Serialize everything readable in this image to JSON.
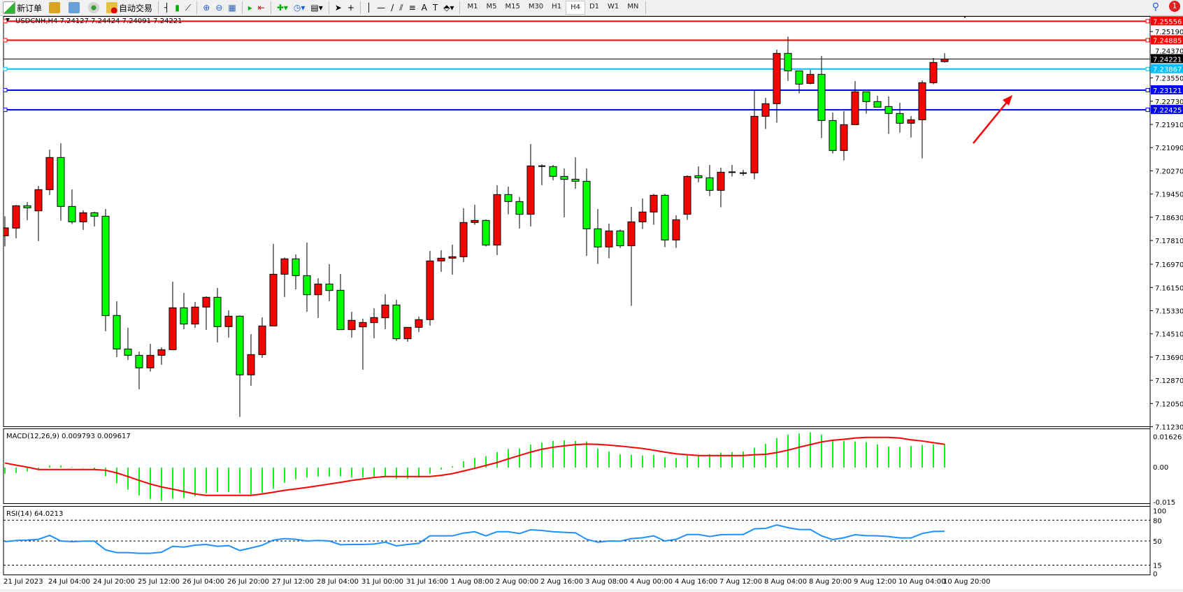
{
  "toolbar": {
    "new_order": "新订单",
    "auto_trading": "自动交易",
    "timeframes": [
      "M1",
      "M5",
      "M15",
      "M30",
      "H1",
      "H4",
      "D1",
      "W1",
      "MN"
    ],
    "selected_timeframe": "H4",
    "notification_count": "1"
  },
  "chart": {
    "header": "USDCNH,H4  7.24127 7.24424 7.24091 7.24221",
    "bull_color": "#ff0000",
    "bear_color": "#00ff00",
    "price_ticks": [
      "7.25190",
      "7.24370",
      "7.23550",
      "7.22730",
      "7.21910",
      "7.21090",
      "7.20270",
      "7.19450",
      "7.18630",
      "7.17810",
      "7.16970",
      "7.16150",
      "7.15330",
      "7.14510",
      "7.13690",
      "7.12870",
      "7.12050",
      "7.11230"
    ],
    "hlines": [
      {
        "price": 7.25556,
        "label": "7.25556",
        "color": "#ff0000"
      },
      {
        "price": 7.24885,
        "label": "7.24885",
        "color": "#ff0000"
      },
      {
        "price": 7.24221,
        "label": "7.24221",
        "color": "#000000"
      },
      {
        "price": 7.23867,
        "label": "7.23867",
        "color": "#00bfff"
      },
      {
        "price": 7.23121,
        "label": "7.23121",
        "color": "#0000ff"
      },
      {
        "price": 7.22425,
        "label": "7.22425",
        "color": "#0000ff"
      }
    ],
    "time_labels": [
      "21 Jul 2023",
      "24 Jul 04:00",
      "24 Jul 20:00",
      "25 Jul 12:00",
      "26 Jul 04:00",
      "26 Jul 20:00",
      "27 Jul 12:00",
      "28 Jul 04:00",
      "31 Jul 00:00",
      "31 Jul 16:00",
      "1 Aug 08:00",
      "2 Aug 00:00",
      "2 Aug 16:00",
      "3 Aug 08:00",
      "4 Aug 00:00",
      "4 Aug 16:00",
      "7 Aug 12:00",
      "8 Aug 04:00",
      "8 Aug 20:00",
      "9 Aug 12:00",
      "10 Aug 04:00",
      "10 Aug 20:00"
    ],
    "annotation": {
      "type": "arrow",
      "color": "#ff0000"
    }
  },
  "chart_data": {
    "type": "candlestick",
    "symbol": "USDCNH",
    "timeframe": "H4",
    "ylim": [
      7.1123,
      7.2625
    ],
    "ohlc": [
      [
        7.17975,
        7.18667,
        7.17597,
        7.18255
      ],
      [
        7.18247,
        7.19062,
        7.17885,
        7.19037
      ],
      [
        7.19037,
        7.19169,
        7.18527,
        7.18963
      ],
      [
        7.18856,
        7.19737,
        7.17786,
        7.19605
      ],
      [
        7.19605,
        7.21021,
        7.19416,
        7.20741
      ],
      [
        7.20741,
        7.21243,
        7.1851,
        7.19012
      ],
      [
        7.19012,
        7.19613,
        7.18387,
        7.18469
      ],
      [
        7.18469,
        7.18873,
        7.18181,
        7.1879
      ],
      [
        7.1879,
        7.18823,
        7.18305,
        7.18667
      ],
      [
        7.18667,
        7.18922,
        7.14601,
        7.15153
      ],
      [
        7.15161,
        7.15663,
        7.13688,
        7.13976
      ],
      [
        7.13976,
        7.14725,
        7.13589,
        7.13753
      ],
      [
        7.13753,
        7.13885,
        7.12552,
        7.13309
      ],
      [
        7.13309,
        7.14157,
        7.13177,
        7.13753
      ],
      [
        7.13753,
        7.14033,
        7.13416,
        7.13951
      ],
      [
        7.13951,
        7.16354,
        7.13951,
        7.15432
      ],
      [
        7.15432,
        7.15959,
        7.14675,
        7.14856
      ],
      [
        7.14856,
        7.15638,
        7.14725,
        7.15457
      ],
      [
        7.15457,
        7.15836,
        7.14651,
        7.15803
      ],
      [
        7.15803,
        7.16132,
        7.14206,
        7.14766
      ],
      [
        7.14766,
        7.15342,
        7.14379,
        7.15136
      ],
      [
        7.15136,
        7.15161,
        7.11572,
        7.13062
      ],
      [
        7.13062,
        7.14502,
        7.12675,
        7.13778
      ],
      [
        7.13778,
        7.15095,
        7.13663,
        7.1479
      ],
      [
        7.1479,
        7.17687,
        7.1479,
        7.16617
      ],
      [
        7.16617,
        7.1721,
        7.15811,
        7.17161
      ],
      [
        7.17161,
        7.17317,
        7.16083,
        7.16568
      ],
      [
        7.16568,
        7.17737,
        7.15292,
        7.15893
      ],
      [
        7.15893,
        7.16478,
        7.1507,
        7.16272
      ],
      [
        7.16272,
        7.16971,
        7.15663,
        7.16041
      ],
      [
        7.1605,
        7.16626,
        7.14659,
        7.14659
      ],
      [
        7.14659,
        7.15292,
        7.14379,
        7.14988
      ],
      [
        7.14758,
        7.15046,
        7.13243,
        7.14914
      ],
      [
        7.14906,
        7.15416,
        7.14354,
        7.15087
      ],
      [
        7.15078,
        7.1591,
        7.14675,
        7.15531
      ],
      [
        7.15531,
        7.15712,
        7.14264,
        7.14338
      ],
      [
        7.14338,
        7.14741,
        7.14231,
        7.14741
      ],
      [
        7.14741,
        7.1512,
        7.14576,
        7.15013
      ],
      [
        7.15013,
        7.1744,
        7.14799,
        7.17087
      ],
      [
        7.17087,
        7.17465,
        7.167,
        7.17185
      ],
      [
        7.17185,
        7.17663,
        7.16601,
        7.17235
      ],
      [
        7.17235,
        7.18947,
        7.17045,
        7.18445
      ],
      [
        7.18445,
        7.1907,
        7.18362,
        7.18519
      ],
      [
        7.18519,
        7.18552,
        7.17597,
        7.17646
      ],
      [
        7.17646,
        7.19761,
        7.17292,
        7.19432
      ],
      [
        7.19432,
        7.19712,
        7.18733,
        7.19185
      ],
      [
        7.19185,
        7.19342,
        7.18231,
        7.18733
      ],
      [
        7.18733,
        7.21218,
        7.18305,
        7.20444
      ],
      [
        7.20436,
        7.20502,
        7.19761,
        7.2042
      ],
      [
        7.2042,
        7.20477,
        7.19934,
        7.20074
      ],
      [
        7.20074,
        7.20354,
        7.18626,
        7.19967
      ],
      [
        7.19975,
        7.20749,
        7.19638,
        7.19901
      ],
      [
        7.19901,
        7.20354,
        7.17268,
        7.18222
      ],
      [
        7.18222,
        7.18922,
        7.1698,
        7.1758
      ],
      [
        7.1758,
        7.18403,
        7.17177,
        7.18148
      ],
      [
        7.18148,
        7.18198,
        7.17547,
        7.17622
      ],
      [
        7.17622,
        7.18996,
        7.15498,
        7.18469
      ],
      [
        7.18469,
        7.19292,
        7.18214,
        7.18815
      ],
      [
        7.18815,
        7.19457,
        7.18362,
        7.19407
      ],
      [
        7.19407,
        7.19457,
        7.17572,
        7.17827
      ],
      [
        7.17827,
        7.187,
        7.17547,
        7.18543
      ],
      [
        7.18733,
        7.20107,
        7.18535,
        7.20074
      ],
      [
        7.20099,
        7.20428,
        7.19868,
        7.20025
      ],
      [
        7.20025,
        7.20477,
        7.19375,
        7.1958
      ],
      [
        7.1958,
        7.20379,
        7.1898,
        7.20222
      ],
      [
        7.20222,
        7.20477,
        7.20066,
        7.20173
      ],
      [
        7.20189,
        7.20305,
        7.20091,
        7.20173
      ],
      [
        7.20198,
        7.23111,
        7.19967,
        7.22197
      ],
      [
        7.22197,
        7.22848,
        7.21745,
        7.22642
      ],
      [
        7.22642,
        7.24551,
        7.21967,
        7.2442
      ],
      [
        7.2442,
        7.25012,
        7.23448,
        7.23802
      ],
      [
        7.23802,
        7.23802,
        7.23004,
        7.23333
      ],
      [
        7.23358,
        7.23835,
        7.23325,
        7.23679
      ],
      [
        7.23679,
        7.24329,
        7.21424,
        7.22049
      ],
      [
        7.22049,
        7.22329,
        7.20881,
        7.20988
      ],
      [
        7.20988,
        7.22378,
        7.20634,
        7.21901
      ],
      [
        7.21901,
        7.2344,
        7.21901,
        7.23062
      ],
      [
        7.23062,
        7.23062,
        7.22288,
        7.22716
      ],
      [
        7.22716,
        7.22922,
        7.22518,
        7.22518
      ],
      [
        7.22543,
        7.22897,
        7.21572,
        7.22296
      ],
      [
        7.22296,
        7.22675,
        7.21621,
        7.21951
      ],
      [
        7.21951,
        7.22206,
        7.21448,
        7.22074
      ],
      [
        7.22074,
        7.23465,
        7.20708,
        7.23383
      ],
      [
        7.23383,
        7.24255,
        7.23325,
        7.24099
      ],
      [
        7.24127,
        7.24424,
        7.24091,
        7.24221
      ]
    ],
    "macd": {
      "label": "MACD(12,26,9) 0.009793 0.009617",
      "ticks": [
        "0.016261",
        "0.00",
        "-0.015"
      ],
      "ylim": [
        -0.0149,
        0.016261
      ],
      "histogram": [
        -0.0025,
        -0.0022,
        -0.0016,
        -0.0005,
        0.0009,
        0.0009,
        0.0002,
        -0.0001,
        -0.0006,
        -0.0035,
        -0.0065,
        -0.0091,
        -0.0115,
        -0.013,
        -0.0138,
        -0.0129,
        -0.0126,
        -0.0118,
        -0.0107,
        -0.0101,
        -0.0101,
        -0.0107,
        -0.0111,
        -0.0105,
        -0.0087,
        -0.0063,
        -0.0048,
        -0.0041,
        -0.0037,
        -0.0037,
        -0.0036,
        -0.0041,
        -0.0041,
        -0.0037,
        -0.0037,
        -0.0046,
        -0.0046,
        -0.0041,
        -0.0025,
        -0.0008,
        0.0005,
        0.0026,
        0.004,
        0.0047,
        0.0064,
        0.0077,
        0.0079,
        0.0095,
        0.0103,
        0.011,
        0.0113,
        0.011,
        0.0108,
        0.0079,
        0.0067,
        0.0055,
        0.0053,
        0.005,
        0.0053,
        0.0043,
        0.004,
        0.005,
        0.005,
        0.0055,
        0.0062,
        0.0064,
        0.0067,
        0.0082,
        0.0098,
        0.0122,
        0.0137,
        0.0141,
        0.0146,
        0.0137,
        0.0113,
        0.0111,
        0.0108,
        0.0105,
        0.0096,
        0.0087,
        0.0086,
        0.009,
        0.0094,
        0.0096,
        0.009793
      ],
      "signal": [
        0.0019,
        0.001,
        0.0002,
        -0.0008,
        -0.0008,
        -0.0008,
        -0.0008,
        -0.0008,
        -0.0008,
        -0.0011,
        -0.0022,
        -0.0037,
        -0.0053,
        -0.0068,
        -0.008,
        -0.0089,
        -0.0099,
        -0.0109,
        -0.0115,
        -0.0115,
        -0.0115,
        -0.0115,
        -0.0115,
        -0.0109,
        -0.0102,
        -0.0094,
        -0.0088,
        -0.0082,
        -0.0075,
        -0.0068,
        -0.0061,
        -0.0053,
        -0.0047,
        -0.0041,
        -0.0037,
        -0.0037,
        -0.0037,
        -0.0037,
        -0.0037,
        -0.0032,
        -0.0025,
        -0.0014,
        -0.0003,
        0.0009,
        0.0021,
        0.0036,
        0.005,
        0.0064,
        0.0076,
        0.0084,
        0.009,
        0.0095,
        0.0097,
        0.0096,
        0.0093,
        0.0089,
        0.0084,
        0.0079,
        0.0072,
        0.0064,
        0.0057,
        0.0053,
        0.005,
        0.005,
        0.005,
        0.005,
        0.005,
        0.0053,
        0.0055,
        0.0062,
        0.0072,
        0.0084,
        0.0095,
        0.0106,
        0.0113,
        0.0117,
        0.0122,
        0.0125,
        0.0125,
        0.0125,
        0.0122,
        0.0115,
        0.011,
        0.0103,
        0.009617
      ],
      "histogram_color": "#00ff00",
      "signal_color": "#ff0000"
    },
    "rsi": {
      "label": "RSI(14) 64.0213",
      "ticks": [
        "100",
        "80",
        "50",
        "15",
        "0"
      ],
      "levels": [
        80,
        50,
        15
      ],
      "ylim": [
        0,
        100
      ],
      "color": "#1e90ff",
      "values": [
        49.0,
        50.7,
        51.3,
        52.4,
        58.1,
        50.0,
        49.0,
        49.7,
        49.7,
        37.2,
        33.2,
        33.2,
        32.2,
        32.2,
        33.8,
        42.3,
        41.2,
        43.9,
        44.9,
        42.3,
        43.3,
        36.2,
        39.9,
        43.9,
        51.3,
        53.4,
        52.4,
        50.0,
        50.7,
        50.0,
        44.6,
        44.9,
        44.9,
        45.6,
        48.3,
        42.9,
        44.9,
        46.6,
        57.4,
        57.4,
        57.4,
        61.4,
        63.4,
        57.4,
        63.4,
        63.4,
        60.8,
        66.2,
        65.2,
        63.4,
        62.5,
        61.8,
        52.4,
        48.3,
        50.0,
        49.7,
        53.4,
        54.7,
        57.4,
        50.0,
        52.4,
        59.4,
        59.4,
        56.4,
        59.1,
        59.4,
        59.4,
        67.5,
        68.2,
        73.2,
        69.2,
        66.5,
        66.5,
        57.4,
        52.0,
        54.7,
        59.1,
        57.7,
        57.4,
        56.4,
        54.4,
        54.4,
        60.8,
        63.8,
        64.0213
      ]
    }
  }
}
